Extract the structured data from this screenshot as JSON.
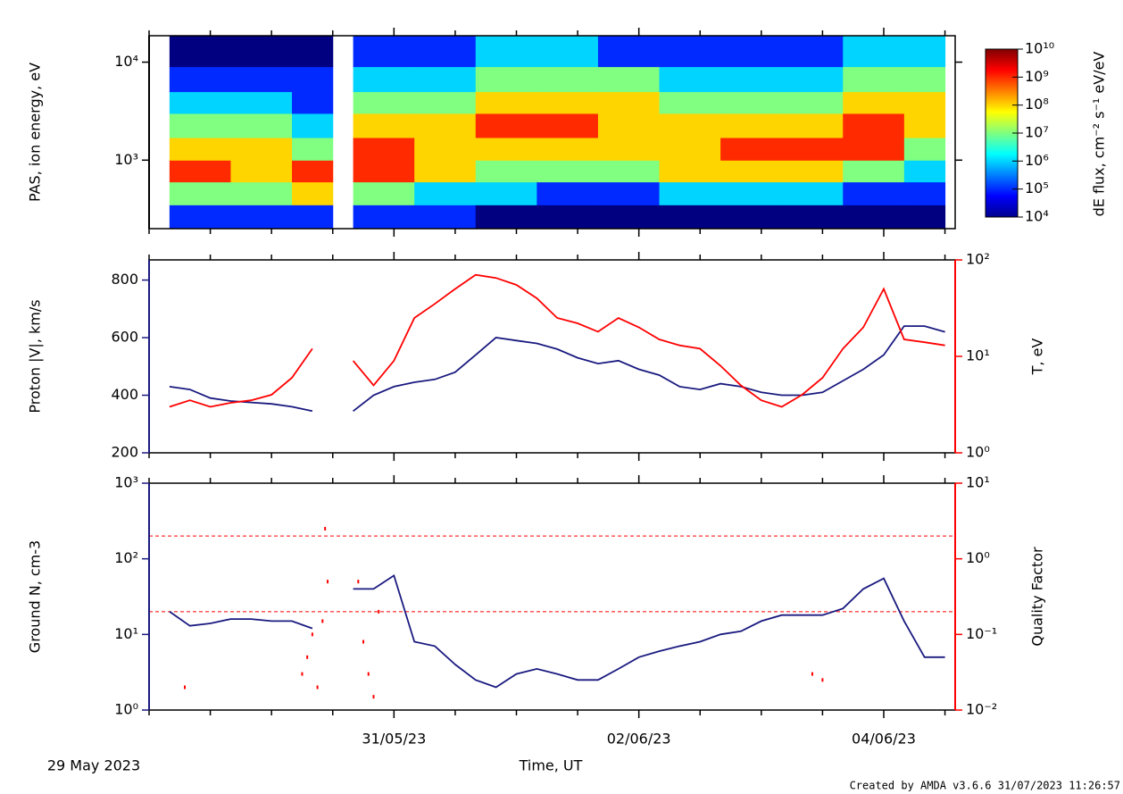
{
  "chart_data": [
    {
      "type": "heatmap",
      "ylabel": "PAS, ion energy, eV",
      "ylog": true,
      "ylim": [
        200,
        18600
      ],
      "yticks": [
        {
          "value": 1000,
          "label": "10³"
        },
        {
          "value": 10000,
          "label": "10⁴"
        }
      ],
      "x_edges": [
        "2023-05-29T04:00",
        "2023-05-29T16:00",
        "2023-05-30T04:00",
        "2023-05-30T12:00",
        "2023-05-30T16:00",
        "2023-05-31T04:00",
        "2023-05-31T16:00",
        "2023-06-01T04:00",
        "2023-06-01T16:00",
        "2023-06-02T04:00",
        "2023-06-02T16:00",
        "2023-06-03T04:00",
        "2023-06-03T16:00",
        "2023-06-04T04:00",
        "2023-06-04T12:00"
      ],
      "y_edges": [
        200,
        350,
        600,
        1000,
        1700,
        3000,
        5000,
        9000,
        18600
      ],
      "z": [
        [
          100000.0,
          10000000.0,
          1000000000.0,
          100000000.0,
          10000000.0,
          1000000.0,
          100000.0,
          10000.0
        ],
        [
          100000.0,
          10000000.0,
          100000000.0,
          100000000.0,
          10000000.0,
          1000000.0,
          100000.0,
          10000.0
        ],
        [
          100000.0,
          100000000.0,
          1000000000.0,
          10000000.0,
          1000000.0,
          100000.0,
          100000.0,
          10000.0
        ],
        null,
        [
          100000.0,
          10000000.0,
          1000000000.0,
          1000000000.0,
          100000000.0,
          10000000.0,
          1000000.0,
          100000.0
        ],
        [
          100000.0,
          1000000.0,
          100000000.0,
          100000000.0,
          100000000.0,
          10000000.0,
          1000000.0,
          100000.0
        ],
        [
          10000.0,
          1000000.0,
          10000000.0,
          100000000.0,
          1000000000.0,
          100000000.0,
          10000000.0,
          1000000.0
        ],
        [
          10000.0,
          100000.0,
          10000000.0,
          100000000.0,
          1000000000.0,
          100000000.0,
          10000000.0,
          1000000.0
        ],
        [
          10000.0,
          100000.0,
          10000000.0,
          100000000.0,
          100000000.0,
          100000000.0,
          10000000.0,
          100000.0
        ],
        [
          10000.0,
          1000000.0,
          100000000.0,
          100000000.0,
          100000000.0,
          10000000.0,
          1000000.0,
          100000.0
        ],
        [
          10000.0,
          1000000.0,
          100000000.0,
          1000000000.0,
          100000000.0,
          10000000.0,
          1000000.0,
          100000.0
        ],
        [
          10000.0,
          1000000.0,
          100000000.0,
          1000000000.0,
          100000000.0,
          10000000.0,
          1000000.0,
          100000.0
        ],
        [
          10000.0,
          100000.0,
          10000000.0,
          1000000000.0,
          1000000000.0,
          100000000.0,
          10000000.0,
          1000000.0
        ],
        [
          10000.0,
          100000.0,
          1000000.0,
          10000000.0,
          100000000.0,
          100000000.0,
          10000000.0,
          1000000.0
        ]
      ],
      "colorbar": {
        "label": "dE flux, cm⁻² s⁻¹ eV/eV",
        "colormap": "jet",
        "lim": [
          10000,
          10000000000
        ],
        "ticks": [
          {
            "value": 10000,
            "label": "10⁴"
          },
          {
            "value": 100000,
            "label": "10⁵"
          },
          {
            "value": 1000000,
            "label": "10⁶"
          },
          {
            "value": 10000000,
            "label": "10⁷"
          },
          {
            "value": 100000000,
            "label": "10⁸"
          },
          {
            "value": 1000000000,
            "label": "10⁹"
          },
          {
            "value": 10000000000,
            "label": "10¹⁰"
          }
        ]
      }
    },
    {
      "type": "line",
      "ylabel": "Proton |V|, km/s",
      "ylim": [
        200,
        870
      ],
      "yticks": [
        200,
        400,
        600,
        800
      ],
      "y2label": "T, eV",
      "y2log": true,
      "y2lim": [
        1,
        100
      ],
      "y2ticks": [
        {
          "value": 1,
          "label": "10⁰"
        },
        {
          "value": 10,
          "label": "10¹"
        },
        {
          "value": 100,
          "label": "10²"
        }
      ],
      "x": [
        "2023-05-29T04:00",
        "2023-05-29T08:00",
        "2023-05-29T12:00",
        "2023-05-29T16:00",
        "2023-05-29T20:00",
        "2023-05-30T00:00",
        "2023-05-30T04:00",
        "2023-05-30T08:00",
        "2023-05-30T12:00",
        "2023-05-30T16:00",
        "2023-05-30T20:00",
        "2023-05-31T00:00",
        "2023-05-31T04:00",
        "2023-05-31T08:00",
        "2023-05-31T12:00",
        "2023-05-31T16:00",
        "2023-05-31T20:00",
        "2023-06-01T00:00",
        "2023-06-01T04:00",
        "2023-06-01T08:00",
        "2023-06-01T12:00",
        "2023-06-01T16:00",
        "2023-06-01T20:00",
        "2023-06-02T00:00",
        "2023-06-02T04:00",
        "2023-06-02T08:00",
        "2023-06-02T12:00",
        "2023-06-02T16:00",
        "2023-06-02T20:00",
        "2023-06-03T00:00",
        "2023-06-03T04:00",
        "2023-06-03T08:00",
        "2023-06-03T12:00",
        "2023-06-03T16:00",
        "2023-06-03T20:00",
        "2023-06-04T00:00",
        "2023-06-04T04:00",
        "2023-06-04T08:00",
        "2023-06-04T12:00"
      ],
      "series": [
        {
          "color": "#1a1a80",
          "axis": "y",
          "values": [
            430,
            420,
            390,
            380,
            375,
            370,
            360,
            345,
            null,
            345,
            400,
            430,
            445,
            455,
            480,
            540,
            600,
            590,
            580,
            560,
            530,
            510,
            520,
            490,
            470,
            430,
            420,
            440,
            430,
            410,
            400,
            400,
            410,
            450,
            490,
            540,
            640,
            640,
            620
          ]
        },
        {
          "color": "#ff0000",
          "axis": "y2",
          "values": [
            3,
            3.5,
            3,
            3.3,
            3.5,
            4,
            6,
            12,
            null,
            9,
            5,
            9,
            25,
            35,
            50,
            70,
            65,
            55,
            40,
            25,
            22,
            18,
            25,
            20,
            15,
            13,
            12,
            8,
            5,
            3.5,
            3,
            4,
            6,
            12,
            20,
            50,
            15,
            14,
            13
          ]
        }
      ]
    },
    {
      "type": "line",
      "ylabel": "Ground N, cm-3",
      "ylog": true,
      "ylim": [
        1,
        1000
      ],
      "yticks": [
        {
          "value": 1,
          "label": "10⁰"
        },
        {
          "value": 10,
          "label": "10¹"
        },
        {
          "value": 100,
          "label": "10²"
        },
        {
          "value": 1000,
          "label": "10³"
        }
      ],
      "y2label": "Quality Factor",
      "y2log": true,
      "y2lim": [
        0.01,
        10
      ],
      "y2ticks": [
        {
          "value": 0.01,
          "label": "10⁻²"
        },
        {
          "value": 0.1,
          "label": "10⁻¹"
        },
        {
          "value": 1,
          "label": "10⁰"
        },
        {
          "value": 10,
          "label": "10¹"
        }
      ],
      "hlines": [
        {
          "value": 2,
          "axis": "y2",
          "color": "#ff0000"
        },
        {
          "value": 0.2,
          "axis": "y2",
          "color": "#ff0000"
        }
      ],
      "x": [
        "2023-05-29T04:00",
        "2023-05-29T08:00",
        "2023-05-29T12:00",
        "2023-05-29T16:00",
        "2023-05-29T20:00",
        "2023-05-30T00:00",
        "2023-05-30T04:00",
        "2023-05-30T08:00",
        "2023-05-30T12:00",
        "2023-05-30T16:00",
        "2023-05-30T20:00",
        "2023-05-31T00:00",
        "2023-05-31T04:00",
        "2023-05-31T08:00",
        "2023-05-31T12:00",
        "2023-05-31T16:00",
        "2023-05-31T20:00",
        "2023-06-01T00:00",
        "2023-06-01T04:00",
        "2023-06-01T08:00",
        "2023-06-01T12:00",
        "2023-06-01T16:00",
        "2023-06-01T20:00",
        "2023-06-02T00:00",
        "2023-06-02T04:00",
        "2023-06-02T08:00",
        "2023-06-02T12:00",
        "2023-06-02T16:00",
        "2023-06-02T20:00",
        "2023-06-03T00:00",
        "2023-06-03T04:00",
        "2023-06-03T08:00",
        "2023-06-03T12:00",
        "2023-06-03T16:00",
        "2023-06-03T20:00",
        "2023-06-04T00:00",
        "2023-06-04T04:00",
        "2023-06-04T08:00",
        "2023-06-04T12:00"
      ],
      "series": [
        {
          "color": "#1a1a80",
          "axis": "y",
          "values": [
            20,
            13,
            14,
            16,
            16,
            15,
            15,
            12,
            null,
            40,
            40,
            60,
            8,
            7,
            4,
            2.5,
            2,
            3,
            3.5,
            3,
            2.5,
            2.5,
            3.5,
            5,
            6,
            7,
            8,
            10,
            11,
            15,
            18,
            18,
            18,
            22,
            40,
            55,
            15,
            5,
            5
          ]
        },
        {
          "color": "#ff0000",
          "axis": "y2",
          "style": "dots",
          "x": [
            "2023-05-29T07:00",
            "2023-05-30T06:00",
            "2023-05-30T07:00",
            "2023-05-30T08:00",
            "2023-05-30T09:00",
            "2023-05-30T10:00",
            "2023-05-30T10:30",
            "2023-05-30T11:00",
            "2023-05-30T17:00",
            "2023-05-30T18:00",
            "2023-05-30T19:00",
            "2023-05-30T20:00",
            "2023-05-30T21:00",
            "2023-06-03T10:00",
            "2023-06-03T12:00"
          ],
          "values": [
            0.02,
            0.03,
            0.05,
            0.1,
            0.02,
            0.15,
            2.5,
            0.5,
            0.5,
            0.08,
            0.03,
            0.015,
            0.2,
            0.03,
            0.025
          ]
        }
      ],
      "xlim": [
        "2023-05-29T00:00",
        "2023-06-04T14:00"
      ],
      "xticks": [
        {
          "value": "2023-05-31T00:00",
          "label": "31/05/23"
        },
        {
          "value": "2023-06-02T00:00",
          "label": "02/06/23"
        },
        {
          "value": "2023-06-04T00:00",
          "label": "04/06/23"
        }
      ],
      "xminorticks": [
        "2023-05-29T00:00",
        "2023-05-29T12:00",
        "2023-05-30T00:00",
        "2023-05-30T12:00",
        "2023-05-31T12:00",
        "2023-06-01T00:00",
        "2023-06-01T12:00",
        "2023-06-02T12:00",
        "2023-06-03T00:00",
        "2023-06-03T12:00",
        "2023-06-04T12:00"
      ],
      "xlabel": "Time, UT",
      "start_label": "29 May 2023"
    }
  ],
  "footer": "Created by AMDA v3.6.6 31/07/2023 11:26:57"
}
